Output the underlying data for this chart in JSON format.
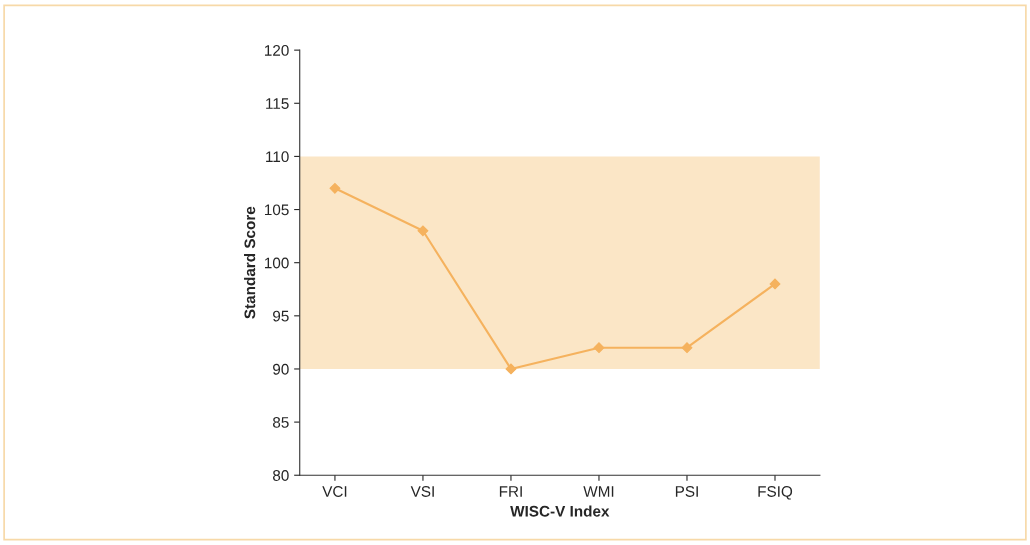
{
  "chart_data": {
    "type": "line",
    "xlabel": "WISC-V Index",
    "ylabel": "Standard Score",
    "categories": [
      "VCI",
      "VSI",
      "FRI",
      "WMI",
      "PSI",
      "FSIQ"
    ],
    "series": [
      {
        "color": "#f5b25e",
        "values": [
          107,
          103,
          90,
          92,
          92,
          98
        ]
      }
    ],
    "ylim": [
      80,
      120
    ],
    "yticks": [
      80,
      85,
      90,
      95,
      100,
      105,
      110,
      115,
      120
    ],
    "bands": [
      {
        "axis": "y",
        "from": 90,
        "to": 110,
        "color": "#fbe6c6"
      }
    ],
    "marker": "diamond",
    "line_style": "solid",
    "grid": false,
    "legend": false
  }
}
